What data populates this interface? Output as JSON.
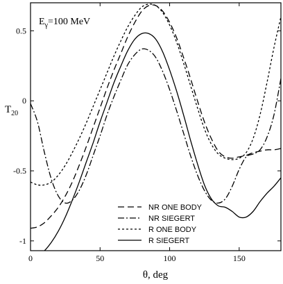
{
  "chart_data": {
    "type": "line",
    "annotation": {
      "main": "E",
      "sub": "γ",
      "rest": "=100 MeV"
    },
    "xlabel": "θ, deg",
    "ylabel": {
      "main": "T",
      "sub": "20"
    },
    "xlim": [
      0,
      180
    ],
    "ylim": [
      -1.07,
      0.7
    ],
    "xticks": [
      0,
      50,
      100,
      150
    ],
    "yticks": [
      -1,
      -0.5,
      0,
      0.5
    ],
    "ytick_labels": [
      "-1",
      "-0.5",
      "0",
      "0.5"
    ],
    "grid": false,
    "legend_position": "bottom-center",
    "series": [
      {
        "name": "NR ONE BODY",
        "dash": "long-dash",
        "color": "#000000",
        "x": [
          0,
          5,
          10,
          15,
          20,
          25,
          30,
          35,
          40,
          45,
          50,
          55,
          60,
          65,
          70,
          75,
          80,
          85,
          90,
          95,
          100,
          105,
          110,
          115,
          120,
          125,
          130,
          135,
          140,
          145,
          150,
          155,
          160,
          165,
          170,
          175,
          180
        ],
        "y": [
          -0.91,
          -0.9,
          -0.87,
          -0.82,
          -0.76,
          -0.68,
          -0.58,
          -0.46,
          -0.33,
          -0.19,
          -0.05,
          0.09,
          0.22,
          0.34,
          0.46,
          0.56,
          0.64,
          0.68,
          0.68,
          0.64,
          0.56,
          0.45,
          0.31,
          0.16,
          0.0,
          -0.15,
          -0.27,
          -0.36,
          -0.4,
          -0.41,
          -0.4,
          -0.39,
          -0.37,
          -0.36,
          -0.35,
          -0.35,
          -0.34
        ]
      },
      {
        "name": "NR SIEGERT",
        "dash": "dash-dot",
        "color": "#000000",
        "x": [
          0,
          5,
          10,
          15,
          20,
          25,
          30,
          35,
          40,
          45,
          50,
          55,
          60,
          65,
          70,
          75,
          80,
          85,
          90,
          95,
          100,
          105,
          110,
          115,
          120,
          125,
          130,
          135,
          140,
          145,
          150,
          155,
          160,
          165,
          170,
          175,
          180
        ],
        "y": [
          -0.02,
          -0.15,
          -0.37,
          -0.56,
          -0.68,
          -0.73,
          -0.71,
          -0.64,
          -0.53,
          -0.39,
          -0.25,
          -0.1,
          0.03,
          0.15,
          0.26,
          0.33,
          0.37,
          0.36,
          0.31,
          0.21,
          0.08,
          -0.07,
          -0.23,
          -0.39,
          -0.53,
          -0.64,
          -0.71,
          -0.73,
          -0.7,
          -0.61,
          -0.49,
          -0.4,
          -0.38,
          -0.35,
          -0.26,
          -0.1,
          0.16
        ]
      },
      {
        "name": "R ONE BODY",
        "dash": "short-dash",
        "color": "#000000",
        "x": [
          0,
          5,
          10,
          15,
          20,
          25,
          30,
          35,
          40,
          45,
          50,
          55,
          60,
          65,
          70,
          75,
          80,
          85,
          90,
          95,
          100,
          105,
          110,
          115,
          120,
          125,
          130,
          135,
          140,
          145,
          150,
          155,
          160,
          165,
          170,
          175,
          180
        ],
        "y": [
          -0.58,
          -0.6,
          -0.6,
          -0.58,
          -0.53,
          -0.46,
          -0.37,
          -0.27,
          -0.16,
          -0.04,
          0.08,
          0.2,
          0.32,
          0.43,
          0.53,
          0.61,
          0.67,
          0.69,
          0.68,
          0.63,
          0.54,
          0.42,
          0.27,
          0.11,
          -0.05,
          -0.2,
          -0.31,
          -0.38,
          -0.41,
          -0.42,
          -0.41,
          -0.37,
          -0.27,
          -0.1,
          0.13,
          0.38,
          0.6
        ]
      },
      {
        "name": "R SIEGERT",
        "dash": "solid",
        "color": "#000000",
        "x": [
          0,
          5,
          10,
          15,
          20,
          25,
          30,
          35,
          40,
          45,
          50,
          55,
          60,
          65,
          70,
          75,
          80,
          85,
          90,
          95,
          100,
          105,
          110,
          115,
          120,
          125,
          130,
          135,
          140,
          145,
          150,
          155,
          160,
          165,
          170,
          175,
          180
        ],
        "y": [
          -1.12,
          -1.1,
          -1.07,
          -1.01,
          -0.93,
          -0.83,
          -0.71,
          -0.58,
          -0.44,
          -0.3,
          -0.15,
          -0.01,
          0.13,
          0.25,
          0.36,
          0.44,
          0.48,
          0.48,
          0.44,
          0.35,
          0.22,
          0.07,
          -0.1,
          -0.28,
          -0.45,
          -0.6,
          -0.7,
          -0.75,
          -0.76,
          -0.79,
          -0.83,
          -0.83,
          -0.79,
          -0.72,
          -0.66,
          -0.61,
          -0.55
        ]
      }
    ]
  }
}
